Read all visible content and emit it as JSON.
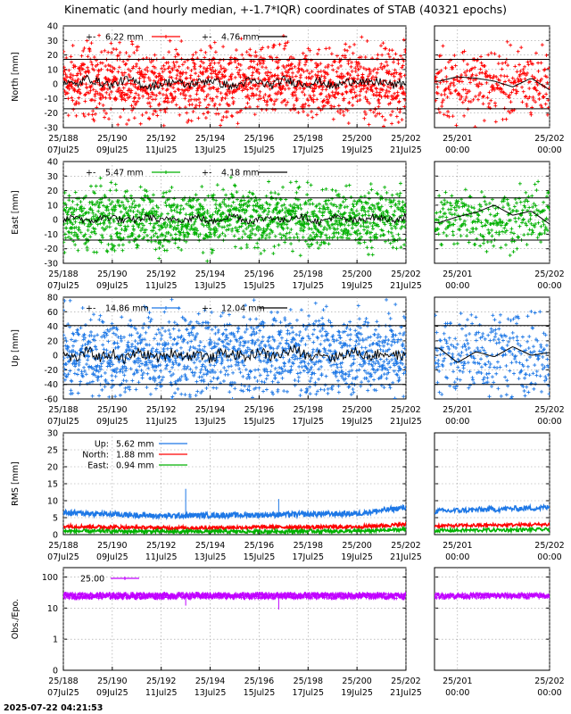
{
  "title": "Kinematic (and hourly median, +-1.7*IQR) coordinates of STAB (40321 epochs)",
  "footer_timestamp": "2025-07-22 04:21:53",
  "colors": {
    "north": "#ff0000",
    "east": "#00b000",
    "up": "#1e78e6",
    "obs": "#c000ff",
    "median": "#000000",
    "grid": "#9a9a9a",
    "frame": "#000000"
  },
  "x_ticks_main": [
    {
      "top": "25/188",
      "bottom": "07Jul25"
    },
    {
      "top": "25/190",
      "bottom": "09Jul25"
    },
    {
      "top": "25/192",
      "bottom": "11Jul25"
    },
    {
      "top": "25/194",
      "bottom": "13Jul25"
    },
    {
      "top": "25/196",
      "bottom": "15Jul25"
    },
    {
      "top": "25/198",
      "bottom": "17Jul25"
    },
    {
      "top": "25/200",
      "bottom": "19Jul25"
    },
    {
      "top": "25/202",
      "bottom": "21Jul25"
    }
  ],
  "x_ticks_zoom": [
    {
      "top": "25/201",
      "bottom": "00:00"
    },
    {
      "top": "25/202",
      "bottom": "00:00"
    }
  ],
  "chart_data": [
    {
      "id": "north",
      "type": "scatter",
      "ylabel": "North [mm]",
      "ylim": [
        -30,
        40
      ],
      "yticks": [
        "-30",
        "-20",
        "-10",
        "0",
        "10",
        "20",
        "30",
        "40"
      ],
      "xlim_days": [
        188,
        202
      ],
      "legend": [
        {
          "label": "+-",
          "value": "6.22 mm",
          "series": "kinematic"
        },
        {
          "label": "+-",
          "value": "4.76 mm",
          "series": "hourly median"
        }
      ],
      "iqr_band": [
        -17,
        17
      ],
      "median_series": [
        [
          188.0,
          2
        ],
        [
          188.5,
          -1
        ],
        [
          189.0,
          4
        ],
        [
          189.5,
          1
        ],
        [
          190.0,
          -1
        ],
        [
          190.5,
          3
        ],
        [
          191.0,
          1
        ],
        [
          191.5,
          -2
        ],
        [
          192.0,
          0
        ],
        [
          192.5,
          2
        ],
        [
          193.0,
          -1
        ],
        [
          193.5,
          1
        ],
        [
          194.0,
          3
        ],
        [
          194.5,
          0
        ],
        [
          195.0,
          -2
        ],
        [
          195.5,
          2
        ],
        [
          196.0,
          1
        ],
        [
          196.5,
          -1
        ],
        [
          197.0,
          3
        ],
        [
          197.5,
          1
        ],
        [
          198.0,
          0
        ],
        [
          198.5,
          2
        ],
        [
          199.0,
          -2
        ],
        [
          199.5,
          1
        ],
        [
          200.0,
          3
        ],
        [
          200.5,
          0
        ],
        [
          201.0,
          2
        ],
        [
          201.5,
          -1
        ],
        [
          202.0,
          1
        ]
      ],
      "scatter_spread": 12,
      "zoom_median_series": [
        [
          200.8,
          2
        ],
        [
          201.0,
          5
        ],
        [
          201.2,
          4
        ],
        [
          201.4,
          2
        ],
        [
          201.6,
          -2
        ],
        [
          201.8,
          4
        ],
        [
          202.0,
          -4
        ]
      ]
    },
    {
      "id": "east",
      "type": "scatter",
      "ylabel": "East [mm]",
      "ylim": [
        -30,
        40
      ],
      "yticks": [
        "-30",
        "-20",
        "-10",
        "0",
        "10",
        "20",
        "30",
        "40"
      ],
      "xlim_days": [
        188,
        202
      ],
      "legend": [
        {
          "label": "+-",
          "value": "5.47 mm",
          "series": "kinematic"
        },
        {
          "label": "+-",
          "value": "4.18 mm",
          "series": "hourly median"
        }
      ],
      "iqr_band": [
        -14,
        15
      ],
      "median_series": [
        [
          188.0,
          -1
        ],
        [
          188.5,
          3
        ],
        [
          189.0,
          -2
        ],
        [
          189.5,
          1
        ],
        [
          190.0,
          2
        ],
        [
          190.5,
          -1
        ],
        [
          191.0,
          0
        ],
        [
          191.5,
          2
        ],
        [
          192.0,
          -1
        ],
        [
          192.5,
          1
        ],
        [
          193.0,
          0
        ],
        [
          193.5,
          2
        ],
        [
          194.0,
          -2
        ],
        [
          194.5,
          1
        ],
        [
          195.0,
          3
        ],
        [
          195.5,
          -1
        ],
        [
          196.0,
          0
        ],
        [
          196.5,
          2
        ],
        [
          197.0,
          -1
        ],
        [
          197.5,
          3
        ],
        [
          198.0,
          1
        ],
        [
          198.5,
          -2
        ],
        [
          199.0,
          2
        ],
        [
          199.5,
          0
        ],
        [
          200.0,
          -1
        ],
        [
          200.5,
          2
        ],
        [
          201.0,
          1
        ],
        [
          201.5,
          0
        ],
        [
          202.0,
          2
        ]
      ],
      "scatter_spread": 10,
      "zoom_median_series": [
        [
          200.8,
          -2
        ],
        [
          201.0,
          2
        ],
        [
          201.2,
          5
        ],
        [
          201.4,
          10
        ],
        [
          201.6,
          3
        ],
        [
          201.8,
          6
        ],
        [
          202.0,
          -3
        ]
      ]
    },
    {
      "id": "up",
      "type": "scatter",
      "ylabel": "Up [mm]",
      "ylim": [
        -60,
        80
      ],
      "yticks": [
        "-60",
        "-40",
        "-20",
        "0",
        "20",
        "40",
        "60",
        "80"
      ],
      "xlim_days": [
        188,
        202
      ],
      "legend": [
        {
          "label": "+-",
          "value": "14.86 mm",
          "series": "kinematic"
        },
        {
          "label": "+-",
          "value": "12.04 mm",
          "series": "hourly median"
        }
      ],
      "iqr_band": [
        -40,
        41
      ],
      "median_series": [
        [
          188.0,
          2
        ],
        [
          188.5,
          -5
        ],
        [
          189.0,
          6
        ],
        [
          189.5,
          -3
        ],
        [
          190.0,
          3
        ],
        [
          190.5,
          -6
        ],
        [
          191.0,
          4
        ],
        [
          191.5,
          0
        ],
        [
          192.0,
          -4
        ],
        [
          192.5,
          5
        ],
        [
          193.0,
          -2
        ],
        [
          193.5,
          3
        ],
        [
          194.0,
          -5
        ],
        [
          194.5,
          4
        ],
        [
          195.0,
          1
        ],
        [
          195.5,
          -3
        ],
        [
          196.0,
          6
        ],
        [
          196.5,
          -2
        ],
        [
          197.0,
          3
        ],
        [
          197.5,
          8
        ],
        [
          198.0,
          -1
        ],
        [
          198.5,
          4
        ],
        [
          199.0,
          -4
        ],
        [
          199.5,
          2
        ],
        [
          200.0,
          5
        ],
        [
          200.5,
          -2
        ],
        [
          201.0,
          3
        ],
        [
          201.5,
          1
        ],
        [
          202.0,
          -2
        ]
      ],
      "scatter_spread": 28,
      "zoom_median_series": [
        [
          200.8,
          10
        ],
        [
          201.0,
          -10
        ],
        [
          201.2,
          5
        ],
        [
          201.4,
          -2
        ],
        [
          201.6,
          12
        ],
        [
          201.8,
          0
        ],
        [
          202.0,
          4
        ]
      ]
    },
    {
      "id": "rms",
      "type": "line",
      "ylabel": "RMS [mm]",
      "ylim": [
        0,
        30
      ],
      "yticks": [
        "0",
        "5",
        "10",
        "15",
        "20",
        "25",
        "30"
      ],
      "xlim_days": [
        188,
        202
      ],
      "legend": [
        {
          "label": "Up:",
          "value": "5.62 mm",
          "series": "up"
        },
        {
          "label": "North:",
          "value": "1.88 mm",
          "series": "north"
        },
        {
          "label": "East:",
          "value": "0.94 mm",
          "series": "east"
        }
      ],
      "series": [
        {
          "key": "up",
          "values": [
            [
              188,
              6.5
            ],
            [
              190,
              6.0
            ],
            [
              192,
              5.5
            ],
            [
              194,
              5.7
            ],
            [
              196,
              5.8
            ],
            [
              198,
              6.0
            ],
            [
              200,
              6.2
            ],
            [
              202,
              8.0
            ]
          ]
        },
        {
          "key": "north",
          "values": [
            [
              188,
              2.5
            ],
            [
              190,
              2.2
            ],
            [
              192,
              2.0
            ],
            [
              194,
              2.0
            ],
            [
              196,
              2.2
            ],
            [
              198,
              2.2
            ],
            [
              200,
              2.3
            ],
            [
              202,
              3.0
            ]
          ]
        },
        {
          "key": "east",
          "values": [
            [
              188,
              1.0
            ],
            [
              190,
              1.0
            ],
            [
              192,
              0.9
            ],
            [
              194,
              0.9
            ],
            [
              196,
              0.9
            ],
            [
              198,
              1.0
            ],
            [
              200,
              1.0
            ],
            [
              202,
              1.5
            ]
          ]
        }
      ],
      "spikes": [
        [
          193.0,
          13.5
        ],
        [
          196.8,
          10.5
        ],
        [
          200.3,
          7.5
        ]
      ]
    },
    {
      "id": "obs",
      "type": "line",
      "ylabel": "Obs./Epo.",
      "yscale": "log",
      "ylim": [
        0.1,
        200
      ],
      "yticks": [
        {
          "label": "100",
          "value": 100
        },
        {
          "label": "10",
          "value": 10
        },
        {
          "label": "1",
          "value": 1
        },
        {
          "label": "0",
          "value": 0.1
        }
      ],
      "xlim_days": [
        188,
        202
      ],
      "legend": [
        {
          "label": "",
          "value": "25.00",
          "series": "obs"
        }
      ],
      "series": [
        {
          "key": "obs",
          "values": [
            [
              188,
              25
            ],
            [
              202,
              25
            ]
          ]
        }
      ],
      "dips": [
        [
          188.5,
          18
        ],
        [
          193.0,
          12
        ],
        [
          196.8,
          9
        ],
        [
          201.9,
          18
        ]
      ]
    }
  ]
}
